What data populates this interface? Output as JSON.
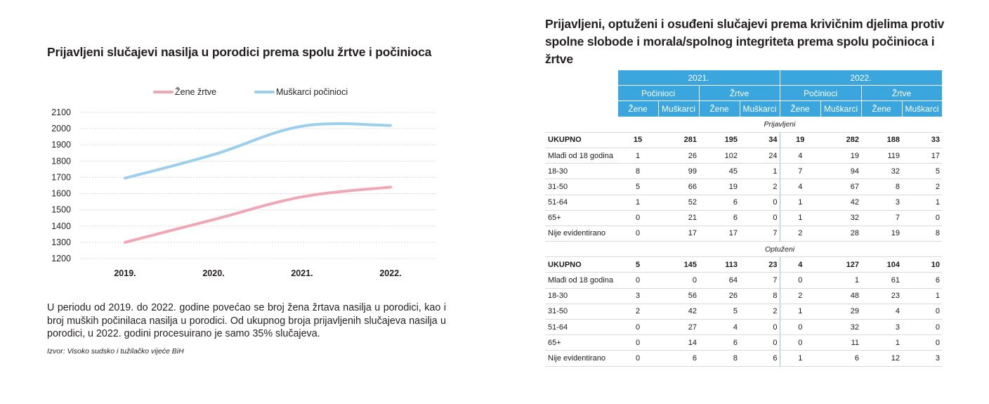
{
  "left": {
    "title": "Prijavljeni slučajevi nasilja u porodici prema spolu žrtve i počinioca",
    "paragraph": "U periodu od 2019. do 2022. godine povećao se broj žena žrtava nasilja u porodici, kao i broj muških počinilaca nasilja u porodici. Od ukupnog broja prijavljenih slučajeva nasilja u porodici, u 2022. godini procesuirano je samo 35% slučajeva.",
    "source": "Izvor: Visoko sudsko i tužilačko vijeće BiH"
  },
  "chart_data": {
    "type": "line",
    "categories": [
      "2019.",
      "2020.",
      "2021.",
      "2022."
    ],
    "series": [
      {
        "name": "Žene žrtve",
        "color": "#f0a7b5",
        "values": [
          1300,
          1440,
          1580,
          1640
        ]
      },
      {
        "name": "Muškarci počinioci",
        "color": "#9ccfec",
        "values": [
          1695,
          1840,
          2015,
          2020
        ]
      }
    ],
    "yticks": [
      1200,
      1300,
      1400,
      1500,
      1600,
      1700,
      1800,
      1900,
      2000,
      2100
    ],
    "ylim": [
      1200,
      2100
    ],
    "grid": true,
    "legend": "top"
  },
  "right": {
    "title": "Prijavljeni, optuženi i osuđeni slučajevi prema krivičnim djelima protiv spolne slobode i morala/spolnog integriteta prema spolu počinioca i žrtve",
    "years": [
      "2021.",
      "2022."
    ],
    "groups": [
      "Počinioci",
      "Žrtve"
    ],
    "sexes": [
      "Žene",
      "Muškarci"
    ],
    "sections": [
      {
        "name": "Prijavljeni",
        "rows": [
          {
            "label": "UKUPNO",
            "total": true,
            "values": [
              "15",
              "281",
              "195",
              "34",
              "19",
              "282",
              "188",
              "33"
            ]
          },
          {
            "label": "Mlađi od 18 godina",
            "values": [
              "1",
              "26",
              "102",
              "24",
              "4",
              "19",
              "119",
              "17"
            ]
          },
          {
            "label": "18-30",
            "values": [
              "8",
              "99",
              "45",
              "1",
              "7",
              "94",
              "32",
              "5"
            ]
          },
          {
            "label": "31-50",
            "values": [
              "5",
              "66",
              "19",
              "2",
              "4",
              "67",
              "8",
              "2"
            ]
          },
          {
            "label": "51-64",
            "values": [
              "1",
              "52",
              "6",
              "0",
              "1",
              "42",
              "3",
              "1"
            ]
          },
          {
            "label": "65+",
            "values": [
              "0",
              "21",
              "6",
              "0",
              "1",
              "32",
              "7",
              "0"
            ]
          },
          {
            "label": "Nije evidentirano",
            "values": [
              "0",
              "17",
              "17",
              "7",
              "2",
              "28",
              "19",
              "8"
            ]
          }
        ]
      },
      {
        "name": "Optuženi",
        "rows": [
          {
            "label": "UKUPNO",
            "total": true,
            "values": [
              "5",
              "145",
              "113",
              "23",
              "4",
              "127",
              "104",
              "10"
            ]
          },
          {
            "label": "Mlađi od 18 godina",
            "values": [
              "0",
              "0",
              "64",
              "7",
              "0",
              "1",
              "61",
              "6"
            ]
          },
          {
            "label": "18-30",
            "values": [
              "3",
              "56",
              "26",
              "8",
              "2",
              "48",
              "23",
              "1"
            ]
          },
          {
            "label": "31-50",
            "values": [
              "2",
              "42",
              "5",
              "2",
              "1",
              "29",
              "4",
              "0"
            ]
          },
          {
            "label": "51-64",
            "values": [
              "0",
              "27",
              "4",
              "0",
              "0",
              "32",
              "3",
              "0"
            ]
          },
          {
            "label": "65+",
            "values": [
              "0",
              "14",
              "6",
              "0",
              "0",
              "11",
              "1",
              "0"
            ]
          },
          {
            "label": "Nije evidentirano",
            "values": [
              "0",
              "6",
              "8",
              "6",
              "1",
              "6",
              "12",
              "3"
            ]
          }
        ]
      }
    ]
  }
}
